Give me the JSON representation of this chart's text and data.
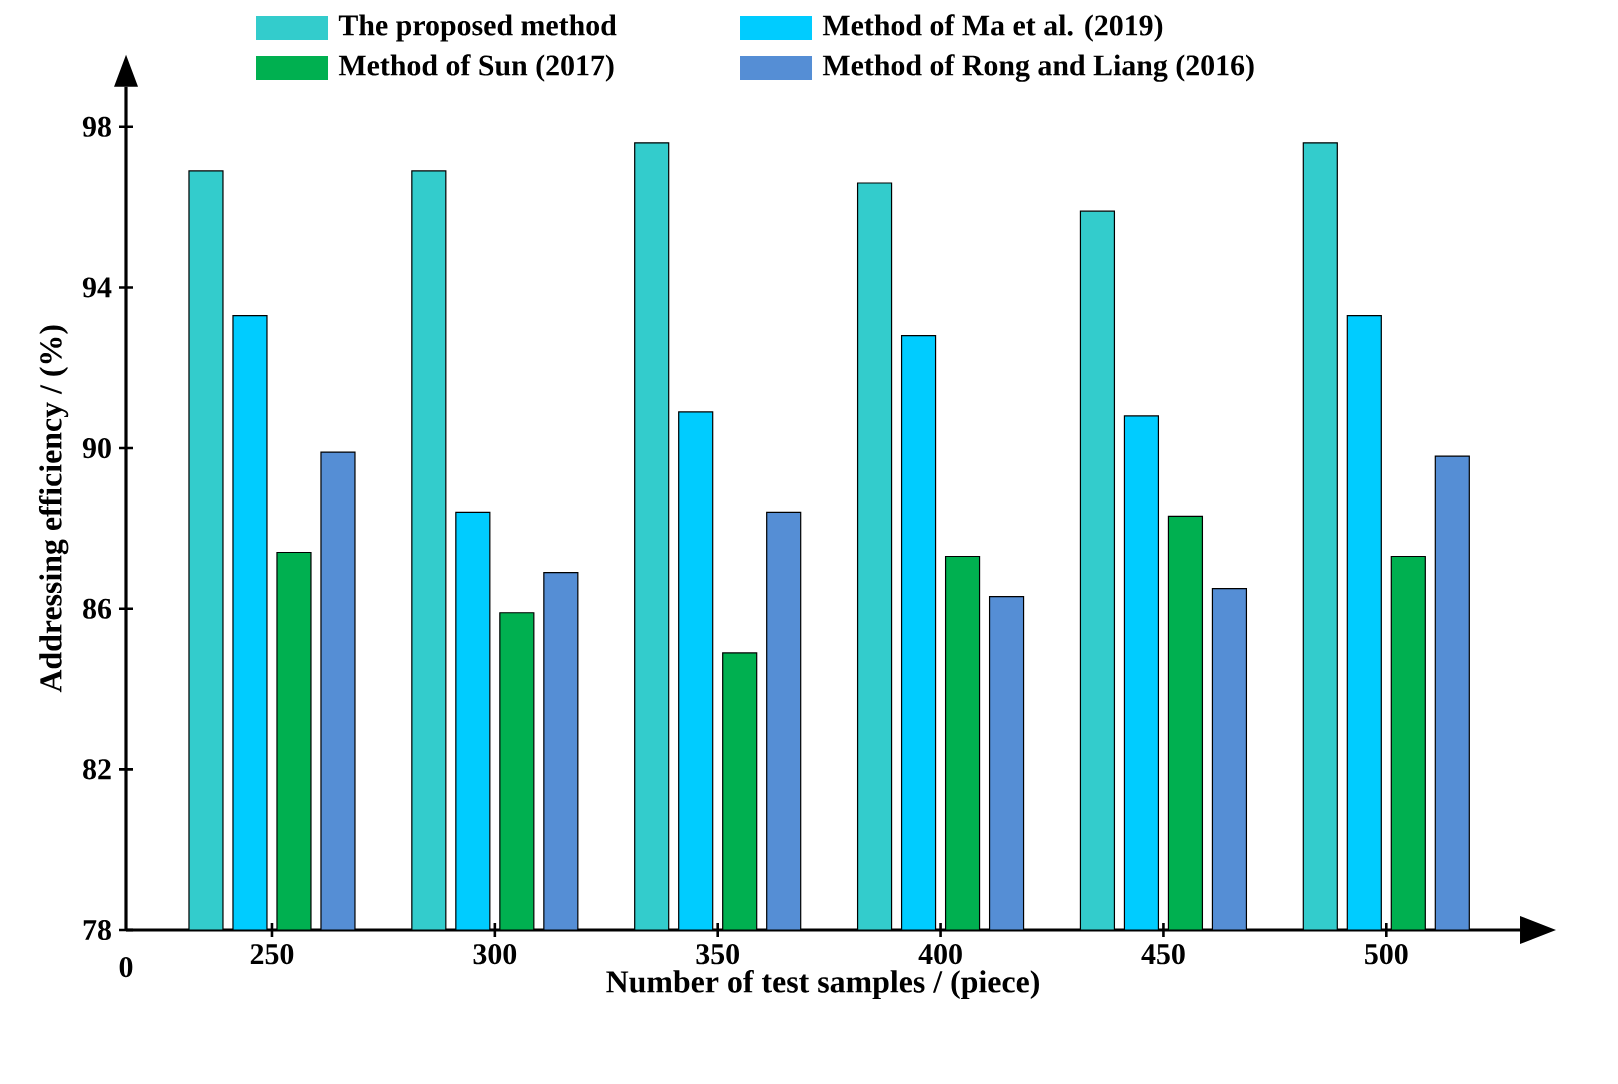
{
  "chart_data": {
    "type": "bar",
    "xlabel": "Number of test samples / (piece)",
    "ylabel": "Addressing efficiency / (%)",
    "categories": [
      "250",
      "300",
      "350",
      "400",
      "450",
      "500"
    ],
    "series": [
      {
        "name": "The proposed method",
        "color": "#33cccc",
        "values": [
          96.9,
          96.9,
          97.6,
          96.6,
          95.9,
          97.6
        ]
      },
      {
        "name": "Method of Ma et al. (2019)",
        "color": "#00ccff",
        "values": [
          93.3,
          88.4,
          90.9,
          92.8,
          90.8,
          93.3
        ]
      },
      {
        "name": "Method of Sun (2017)",
        "color": "#00b050",
        "values": [
          87.4,
          85.9,
          84.9,
          87.3,
          88.3,
          87.3
        ]
      },
      {
        "name": "Method of Rong and Liang (2016)",
        "color": "#558ed5",
        "values": [
          89.9,
          86.9,
          88.4,
          86.3,
          86.5,
          89.8
        ]
      }
    ],
    "ylim": [
      78,
      99
    ],
    "yticks": [
      78,
      82,
      86,
      90,
      94,
      98
    ],
    "legend": "top",
    "grid": false,
    "annotations": [
      "0"
    ]
  }
}
